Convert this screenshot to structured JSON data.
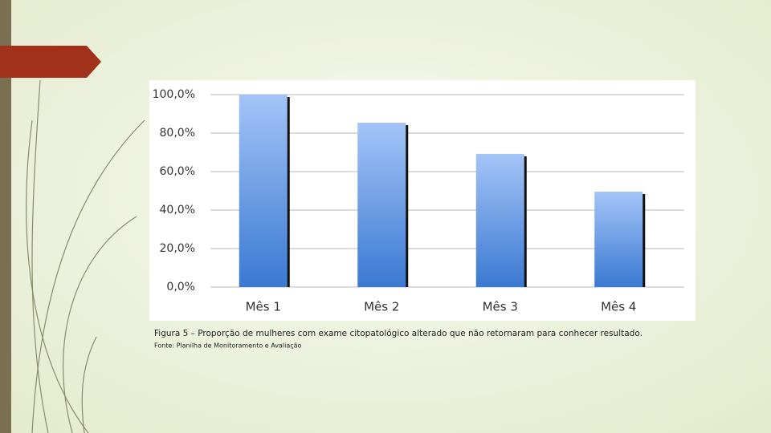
{
  "chart_data": {
    "type": "bar",
    "categories": [
      "Mês 1",
      "Mês 2",
      "Mês 3",
      "Mês 4"
    ],
    "values": [
      100,
      85.4,
      69.2,
      49.6
    ],
    "ylim": [
      0,
      100
    ],
    "yticks": [
      {
        "value": 0,
        "label": "0,0%"
      },
      {
        "value": 20,
        "label": "20,0%"
      },
      {
        "value": 40,
        "label": "40,0%"
      },
      {
        "value": 60,
        "label": "60,0%"
      },
      {
        "value": 80,
        "label": "80,0%"
      },
      {
        "value": 100,
        "label": "100,0%"
      }
    ],
    "grid": true,
    "color": "#4a86d8",
    "caption": "Figura 5 – Proporção de mulheres com exame citopatológico alterado que não retornaram para conhecer resultado.",
    "source": "Fonte: Planilha de Monitoramento e Avaliação"
  }
}
